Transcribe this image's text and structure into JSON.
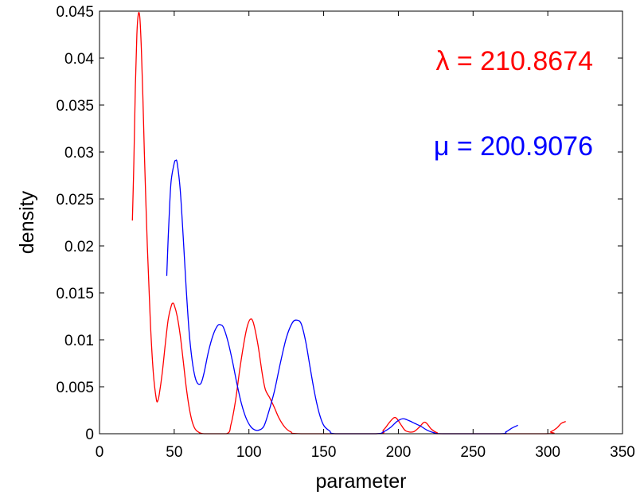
{
  "chart_data": {
    "type": "line",
    "title": "",
    "xlabel": "parameter",
    "ylabel": "density",
    "xlim": [
      0,
      350
    ],
    "ylim": [
      0,
      0.045
    ],
    "x_ticks": [
      "0",
      "50",
      "100",
      "150",
      "200",
      "250",
      "300",
      "350"
    ],
    "y_ticks": [
      "0",
      "0.005",
      "0.01",
      "0.015",
      "0.02",
      "0.025",
      "0.03",
      "0.035",
      "0.04",
      "0.045"
    ],
    "grid": false,
    "box": true,
    "annotations": [
      {
        "text": "λ = 210.8674",
        "color": "#ff0000"
      },
      {
        "text": "μ = 200.9076",
        "color": "#0000ff"
      }
    ],
    "series": [
      {
        "color": "#ff0000",
        "points": [
          [
            22,
            0.0227
          ],
          [
            23,
            0.029
          ],
          [
            24,
            0.037
          ],
          [
            25,
            0.0425
          ],
          [
            26,
            0.0447
          ],
          [
            27,
            0.0443
          ],
          [
            28,
            0.041
          ],
          [
            29,
            0.036
          ],
          [
            30,
            0.03
          ],
          [
            32,
            0.02
          ],
          [
            34,
            0.012
          ],
          [
            36,
            0.0065
          ],
          [
            38,
            0.0037
          ],
          [
            39,
            0.0035
          ],
          [
            40,
            0.0042
          ],
          [
            42,
            0.0065
          ],
          [
            44,
            0.0095
          ],
          [
            46,
            0.0122
          ],
          [
            48,
            0.0136
          ],
          [
            49,
            0.0139
          ],
          [
            50,
            0.0137
          ],
          [
            52,
            0.0125
          ],
          [
            54,
            0.0105
          ],
          [
            56,
            0.0078
          ],
          [
            58,
            0.005
          ],
          [
            60,
            0.0028
          ],
          [
            62,
            0.0013
          ],
          [
            64,
            0.0005
          ],
          [
            66,
            0.0002
          ],
          [
            70,
            0.0
          ],
          [
            85,
            0.0
          ],
          [
            88,
            0.001
          ],
          [
            91,
            0.0035
          ],
          [
            94,
            0.007
          ],
          [
            97,
            0.01
          ],
          [
            99,
            0.0115
          ],
          [
            101,
            0.0122
          ],
          [
            103,
            0.0118
          ],
          [
            106,
            0.0095
          ],
          [
            109,
            0.0063
          ],
          [
            111,
            0.0047
          ],
          [
            114,
            0.0038
          ],
          [
            117,
            0.0028
          ],
          [
            120,
            0.0017
          ],
          [
            124,
            0.0007
          ],
          [
            128,
            0.0002
          ],
          [
            135,
            0.0
          ],
          [
            185,
            0.0
          ],
          [
            190,
            0.0004
          ],
          [
            194,
            0.0012
          ],
          [
            197,
            0.0017
          ],
          [
            199,
            0.0016
          ],
          [
            202,
            0.0009
          ],
          [
            205,
            0.0003
          ],
          [
            210,
            0.0002
          ],
          [
            214,
            0.0007
          ],
          [
            217,
            0.0012
          ],
          [
            219,
            0.0011
          ],
          [
            222,
            0.0005
          ],
          [
            226,
            0.0001
          ],
          [
            230,
            0.0
          ],
          [
            298,
            0.0
          ],
          [
            302,
            0.0002
          ],
          [
            306,
            0.0006
          ],
          [
            309,
            0.0011
          ],
          [
            312,
            0.0013
          ]
        ]
      },
      {
        "color": "#0000ff",
        "points": [
          [
            45,
            0.0168
          ],
          [
            46,
            0.021
          ],
          [
            47,
            0.0245
          ],
          [
            48,
            0.027
          ],
          [
            50,
            0.0288
          ],
          [
            51,
            0.0291
          ],
          [
            52,
            0.0288
          ],
          [
            54,
            0.026
          ],
          [
            56,
            0.021
          ],
          [
            58,
            0.0155
          ],
          [
            60,
            0.0108
          ],
          [
            62,
            0.0078
          ],
          [
            64,
            0.006
          ],
          [
            66,
            0.0053
          ],
          [
            68,
            0.0054
          ],
          [
            70,
            0.0065
          ],
          [
            73,
            0.0088
          ],
          [
            76,
            0.0105
          ],
          [
            79,
            0.0115
          ],
          [
            81,
            0.0116
          ],
          [
            83,
            0.0113
          ],
          [
            86,
            0.0098
          ],
          [
            89,
            0.0077
          ],
          [
            92,
            0.0053
          ],
          [
            95,
            0.0032
          ],
          [
            98,
            0.0017
          ],
          [
            101,
            0.0008
          ],
          [
            104,
            0.0004
          ],
          [
            107,
            0.0004
          ],
          [
            110,
            0.0008
          ],
          [
            113,
            0.0022
          ],
          [
            117,
            0.0045
          ],
          [
            121,
            0.0075
          ],
          [
            125,
            0.0102
          ],
          [
            129,
            0.0118
          ],
          [
            132,
            0.0121
          ],
          [
            135,
            0.0117
          ],
          [
            138,
            0.0098
          ],
          [
            141,
            0.007
          ],
          [
            144,
            0.0043
          ],
          [
            147,
            0.0022
          ],
          [
            150,
            0.0009
          ],
          [
            154,
            0.0003
          ],
          [
            158,
            0.0
          ],
          [
            185,
            0.0
          ],
          [
            190,
            0.0002
          ],
          [
            195,
            0.0007
          ],
          [
            199,
            0.0013
          ],
          [
            203,
            0.0016
          ],
          [
            207,
            0.0014
          ],
          [
            211,
            0.0011
          ],
          [
            215,
            0.0008
          ],
          [
            219,
            0.0004
          ],
          [
            224,
            0.0001
          ],
          [
            230,
            0.0
          ],
          [
            268,
            0.0
          ],
          [
            272,
            0.0002
          ],
          [
            276,
            0.0006
          ],
          [
            280,
            0.0009
          ]
        ]
      }
    ]
  }
}
